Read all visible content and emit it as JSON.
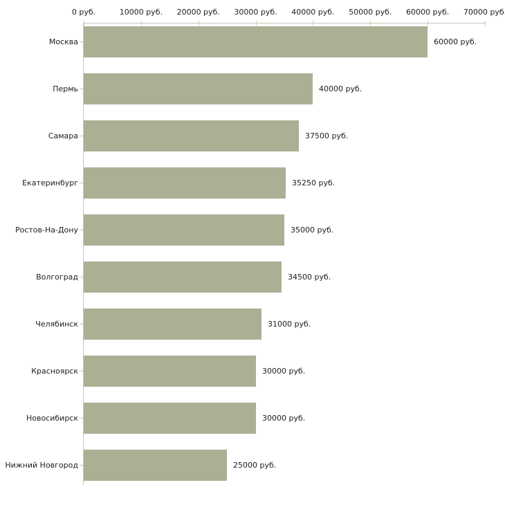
{
  "chart_data": {
    "type": "bar",
    "orientation": "horizontal",
    "title": "",
    "xlabel": "",
    "ylabel": "",
    "unit_suffix": " руб.",
    "xlim": [
      0,
      70000
    ],
    "x_tick_values": [
      0,
      10000,
      20000,
      30000,
      40000,
      50000,
      60000,
      70000
    ],
    "x_tick_labels": [
      "0 руб.",
      "10000 руб.",
      "20000 руб.",
      "30000 руб.",
      "40000 руб.",
      "50000 руб.",
      "60000 руб.",
      "70000 руб."
    ],
    "categories": [
      "Москва",
      "Пермь",
      "Самара",
      "Екатеринбург",
      "Ростов-На-Дону",
      "Волгоград",
      "Челябинск",
      "Красноярск",
      "Новосибирск",
      "Нижний Новгород"
    ],
    "values": [
      60000,
      40000,
      37500,
      35250,
      35000,
      34500,
      31000,
      30000,
      30000,
      25000
    ],
    "value_labels": [
      "60000 руб.",
      "40000 руб.",
      "37500 руб.",
      "35250 руб.",
      "35000 руб.",
      "34500 руб.",
      "31000 руб.",
      "30000 руб.",
      "30000 руб.",
      "25000 руб."
    ],
    "grid": false,
    "legend": null,
    "colors": {
      "bar": "#aab094",
      "axis": "#c6c6bb",
      "tick": "#cbcc9f",
      "text": "#1c1c1c",
      "background": "#ffffff"
    }
  }
}
